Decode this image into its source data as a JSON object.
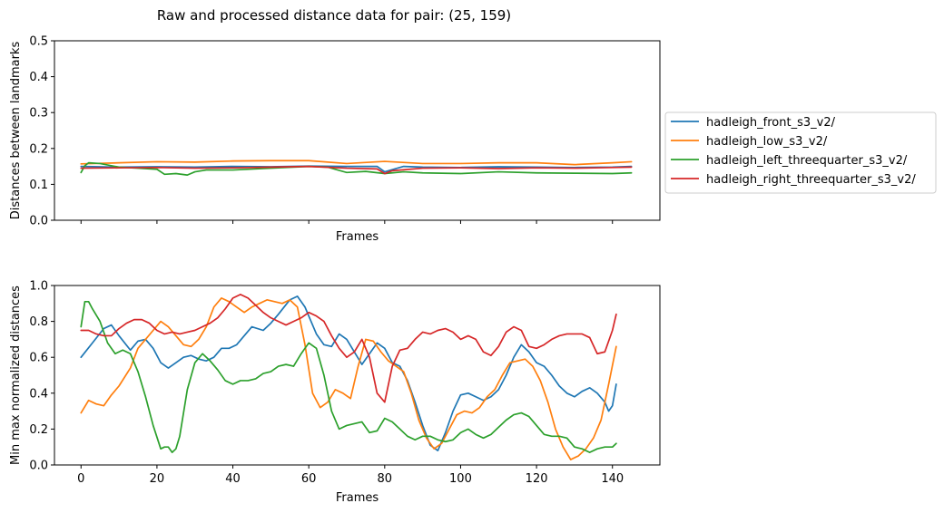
{
  "figure": {
    "title": "Raw and processed distance data for pair: (25, 159)"
  },
  "chart_data": [
    {
      "type": "line",
      "xlabel": "Frames",
      "ylabel": "Distances between landmarks",
      "xlim": [
        -7,
        152.5
      ],
      "ylim": [
        0,
        0.5
      ],
      "yticks": [
        "0.0",
        "0.1",
        "0.2",
        "0.3",
        "0.4",
        "0.5"
      ],
      "xticks_shown": false,
      "grid": false,
      "legend_position": "right",
      "series": [
        {
          "name": "hadleigh_front_s3_v2/",
          "color": "#1f77b4",
          "x": [
            0,
            10,
            20,
            30,
            40,
            50,
            60,
            70,
            78,
            80,
            85,
            90,
            100,
            110,
            120,
            130,
            140,
            145
          ],
          "y": [
            0.15,
            0.148,
            0.149,
            0.148,
            0.15,
            0.149,
            0.151,
            0.15,
            0.15,
            0.135,
            0.15,
            0.148,
            0.147,
            0.149,
            0.148,
            0.147,
            0.148,
            0.15
          ]
        },
        {
          "name": "hadleigh_low_s3_v2/",
          "color": "#ff7f0e",
          "x": [
            0,
            10,
            20,
            30,
            40,
            50,
            60,
            70,
            80,
            90,
            100,
            110,
            120,
            130,
            140,
            145
          ],
          "y": [
            0.157,
            0.16,
            0.163,
            0.162,
            0.165,
            0.166,
            0.166,
            0.158,
            0.164,
            0.158,
            0.158,
            0.16,
            0.16,
            0.155,
            0.16,
            0.163
          ]
        },
        {
          "name": "hadleigh_left_threequarter_s3_v2/",
          "color": "#2ca02c",
          "x": [
            0,
            1,
            2,
            5,
            10,
            15,
            20,
            22,
            25,
            28,
            30,
            33,
            40,
            50,
            60,
            65,
            70,
            75,
            80,
            85,
            90,
            100,
            110,
            120,
            130,
            140,
            145
          ],
          "y": [
            0.133,
            0.152,
            0.16,
            0.158,
            0.148,
            0.145,
            0.142,
            0.128,
            0.13,
            0.126,
            0.135,
            0.14,
            0.14,
            0.145,
            0.15,
            0.148,
            0.133,
            0.136,
            0.13,
            0.135,
            0.132,
            0.13,
            0.135,
            0.132,
            0.131,
            0.13,
            0.132
          ]
        },
        {
          "name": "hadleigh_right_threequarter_s3_v2/",
          "color": "#d62728",
          "x": [
            0,
            10,
            20,
            30,
            40,
            50,
            60,
            70,
            78,
            80,
            82,
            90,
            100,
            110,
            120,
            130,
            140,
            145
          ],
          "y": [
            0.145,
            0.146,
            0.147,
            0.145,
            0.146,
            0.148,
            0.15,
            0.145,
            0.143,
            0.13,
            0.138,
            0.145,
            0.146,
            0.144,
            0.146,
            0.145,
            0.147,
            0.148
          ]
        }
      ]
    },
    {
      "type": "line",
      "xlabel": "Frames",
      "ylabel": "Min max normalized distances",
      "xlim": [
        -7,
        152.5
      ],
      "ylim": [
        0,
        1
      ],
      "xticks": [
        0,
        20,
        40,
        60,
        80,
        100,
        120,
        140
      ],
      "yticks": [
        "0.0",
        "0.2",
        "0.4",
        "0.6",
        "0.8",
        "1.0"
      ],
      "grid": false,
      "series": [
        {
          "name": "hadleigh_front_s3_v2/",
          "color": "#1f77b4",
          "x": [
            0,
            3,
            6,
            8,
            10,
            13,
            15,
            17,
            19,
            21,
            23,
            25,
            27,
            29,
            31,
            33,
            35,
            37,
            39,
            41,
            43,
            45,
            48,
            50,
            52,
            55,
            57,
            59,
            60,
            62,
            64,
            66,
            68,
            70,
            72,
            74,
            76,
            78,
            80,
            82,
            84,
            86,
            88,
            90,
            92,
            94,
            96,
            98,
            100,
            102,
            104,
            106,
            108,
            110,
            112,
            114,
            116,
            118,
            120,
            122,
            124,
            126,
            128,
            130,
            132,
            134,
            136,
            138,
            139,
            140,
            141
          ],
          "y": [
            0.6,
            0.68,
            0.76,
            0.78,
            0.72,
            0.64,
            0.69,
            0.7,
            0.65,
            0.57,
            0.54,
            0.57,
            0.6,
            0.61,
            0.59,
            0.58,
            0.6,
            0.65,
            0.65,
            0.67,
            0.72,
            0.77,
            0.75,
            0.79,
            0.84,
            0.92,
            0.94,
            0.88,
            0.83,
            0.73,
            0.67,
            0.66,
            0.73,
            0.7,
            0.63,
            0.56,
            0.62,
            0.68,
            0.65,
            0.57,
            0.55,
            0.47,
            0.35,
            0.22,
            0.11,
            0.08,
            0.18,
            0.3,
            0.39,
            0.4,
            0.38,
            0.36,
            0.38,
            0.42,
            0.5,
            0.6,
            0.67,
            0.63,
            0.57,
            0.55,
            0.5,
            0.44,
            0.4,
            0.38,
            0.41,
            0.43,
            0.4,
            0.35,
            0.3,
            0.33,
            0.45
          ]
        },
        {
          "name": "hadleigh_low_s3_v2/",
          "color": "#ff7f0e",
          "x": [
            0,
            2,
            4,
            6,
            8,
            10,
            13,
            15,
            17,
            19,
            21,
            23,
            25,
            27,
            29,
            31,
            33,
            35,
            37,
            39,
            41,
            43,
            45,
            47,
            49,
            51,
            53,
            55,
            57,
            59,
            61,
            63,
            65,
            67,
            69,
            71,
            73,
            75,
            77,
            79,
            81,
            83,
            85,
            87,
            89,
            91,
            93,
            95,
            97,
            99,
            101,
            103,
            105,
            107,
            109,
            111,
            113,
            115,
            117,
            119,
            121,
            123,
            125,
            127,
            129,
            131,
            133,
            135,
            137,
            139,
            141
          ],
          "y": [
            0.29,
            0.36,
            0.34,
            0.33,
            0.39,
            0.44,
            0.54,
            0.65,
            0.7,
            0.75,
            0.8,
            0.77,
            0.72,
            0.67,
            0.66,
            0.7,
            0.77,
            0.88,
            0.93,
            0.91,
            0.88,
            0.85,
            0.88,
            0.9,
            0.92,
            0.91,
            0.9,
            0.92,
            0.88,
            0.67,
            0.4,
            0.32,
            0.35,
            0.42,
            0.4,
            0.37,
            0.55,
            0.7,
            0.69,
            0.63,
            0.58,
            0.55,
            0.52,
            0.4,
            0.25,
            0.15,
            0.09,
            0.12,
            0.2,
            0.28,
            0.3,
            0.29,
            0.32,
            0.38,
            0.42,
            0.5,
            0.57,
            0.58,
            0.59,
            0.55,
            0.47,
            0.35,
            0.2,
            0.1,
            0.03,
            0.05,
            0.09,
            0.15,
            0.25,
            0.45,
            0.66
          ]
        },
        {
          "name": "hadleigh_left_threequarter_s3_v2/",
          "color": "#2ca02c",
          "x": [
            0,
            1,
            2,
            3,
            5,
            7,
            9,
            11,
            13,
            15,
            17,
            19,
            21,
            22,
            23,
            24,
            25,
            26,
            28,
            30,
            32,
            34,
            36,
            38,
            40,
            42,
            44,
            46,
            48,
            50,
            52,
            54,
            56,
            58,
            60,
            62,
            64,
            66,
            68,
            70,
            72,
            74,
            76,
            78,
            80,
            82,
            84,
            86,
            88,
            90,
            92,
            94,
            96,
            98,
            100,
            102,
            104,
            106,
            108,
            110,
            112,
            114,
            116,
            118,
            120,
            122,
            124,
            126,
            128,
            130,
            132,
            134,
            136,
            138,
            140,
            141
          ],
          "y": [
            0.77,
            0.91,
            0.91,
            0.87,
            0.8,
            0.68,
            0.62,
            0.64,
            0.62,
            0.52,
            0.38,
            0.22,
            0.09,
            0.1,
            0.1,
            0.07,
            0.09,
            0.16,
            0.42,
            0.57,
            0.62,
            0.58,
            0.53,
            0.47,
            0.45,
            0.47,
            0.47,
            0.48,
            0.51,
            0.52,
            0.55,
            0.56,
            0.55,
            0.62,
            0.68,
            0.65,
            0.5,
            0.3,
            0.2,
            0.22,
            0.23,
            0.24,
            0.18,
            0.19,
            0.26,
            0.24,
            0.2,
            0.16,
            0.14,
            0.16,
            0.16,
            0.14,
            0.13,
            0.14,
            0.18,
            0.2,
            0.17,
            0.15,
            0.17,
            0.21,
            0.25,
            0.28,
            0.29,
            0.27,
            0.22,
            0.17,
            0.16,
            0.16,
            0.15,
            0.1,
            0.09,
            0.07,
            0.09,
            0.1,
            0.1,
            0.12
          ]
        },
        {
          "name": "hadleigh_right_threequarter_s3_v2/",
          "color": "#d62728",
          "x": [
            0,
            2,
            4,
            6,
            8,
            10,
            12,
            14,
            16,
            18,
            20,
            22,
            24,
            26,
            28,
            30,
            32,
            34,
            36,
            38,
            40,
            42,
            44,
            46,
            48,
            50,
            52,
            54,
            56,
            58,
            60,
            62,
            64,
            66,
            68,
            70,
            72,
            74,
            76,
            78,
            80,
            82,
            84,
            86,
            88,
            90,
            92,
            94,
            96,
            98,
            100,
            102,
            104,
            106,
            108,
            110,
            112,
            114,
            116,
            118,
            120,
            122,
            124,
            126,
            128,
            130,
            132,
            134,
            136,
            138,
            140,
            141
          ],
          "y": [
            0.75,
            0.75,
            0.73,
            0.72,
            0.72,
            0.76,
            0.79,
            0.81,
            0.81,
            0.79,
            0.75,
            0.73,
            0.74,
            0.73,
            0.74,
            0.75,
            0.77,
            0.79,
            0.82,
            0.87,
            0.93,
            0.95,
            0.93,
            0.89,
            0.85,
            0.82,
            0.8,
            0.78,
            0.8,
            0.82,
            0.85,
            0.83,
            0.8,
            0.72,
            0.65,
            0.6,
            0.63,
            0.7,
            0.6,
            0.4,
            0.35,
            0.55,
            0.64,
            0.65,
            0.7,
            0.74,
            0.73,
            0.75,
            0.76,
            0.74,
            0.7,
            0.72,
            0.7,
            0.63,
            0.61,
            0.66,
            0.74,
            0.77,
            0.75,
            0.66,
            0.65,
            0.67,
            0.7,
            0.72,
            0.73,
            0.73,
            0.73,
            0.71,
            0.62,
            0.63,
            0.75,
            0.84
          ]
        }
      ]
    }
  ]
}
